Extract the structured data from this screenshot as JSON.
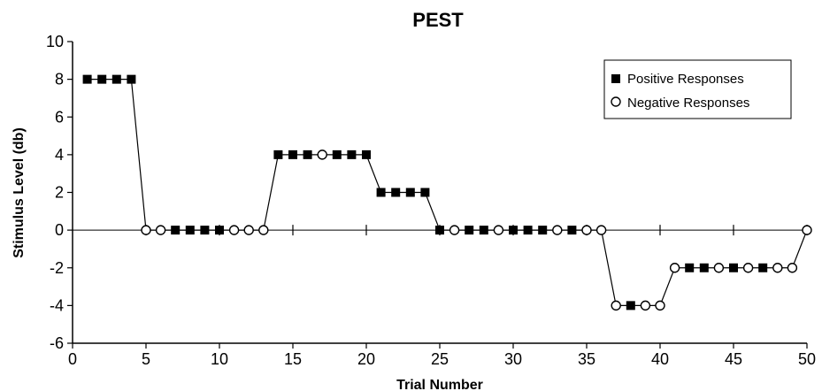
{
  "chart_data": {
    "type": "scatter",
    "title": "PEST",
    "xlabel": "Trial Number",
    "ylabel": "Stimulus Level (db)",
    "xlim": [
      0,
      50
    ],
    "ylim": [
      -6,
      10
    ],
    "xticks": [
      "0",
      "5",
      "10",
      "15",
      "20",
      "25",
      "30",
      "35",
      "40",
      "45",
      "50"
    ],
    "yticks": [
      "-6",
      "-4",
      "-2",
      "0",
      "2",
      "4",
      "6",
      "8",
      "10"
    ],
    "grid": false,
    "legend_position": "top-right",
    "line_connects_all_points": true,
    "series": [
      {
        "name": "Positive Responses",
        "marker": "filled-square",
        "points": [
          [
            1,
            8
          ],
          [
            2,
            8
          ],
          [
            3,
            8
          ],
          [
            4,
            8
          ],
          [
            7,
            0
          ],
          [
            8,
            0
          ],
          [
            9,
            0
          ],
          [
            10,
            0
          ],
          [
            14,
            4
          ],
          [
            15,
            4
          ],
          [
            16,
            4
          ],
          [
            18,
            4
          ],
          [
            19,
            4
          ],
          [
            20,
            4
          ],
          [
            21,
            2
          ],
          [
            22,
            2
          ],
          [
            23,
            2
          ],
          [
            24,
            2
          ],
          [
            25,
            0
          ],
          [
            27,
            0
          ],
          [
            28,
            0
          ],
          [
            30,
            0
          ],
          [
            31,
            0
          ],
          [
            32,
            0
          ],
          [
            34,
            0
          ],
          [
            38,
            -4
          ],
          [
            42,
            -2
          ],
          [
            43,
            -2
          ],
          [
            45,
            -2
          ],
          [
            47,
            -2
          ]
        ]
      },
      {
        "name": "Negative Responses",
        "marker": "open-circle",
        "points": [
          [
            5,
            0
          ],
          [
            6,
            0
          ],
          [
            11,
            0
          ],
          [
            12,
            0
          ],
          [
            13,
            0
          ],
          [
            17,
            4
          ],
          [
            26,
            0
          ],
          [
            29,
            0
          ],
          [
            33,
            0
          ],
          [
            35,
            0
          ],
          [
            36,
            0
          ],
          [
            37,
            -4
          ],
          [
            39,
            -4
          ],
          [
            40,
            -4
          ],
          [
            41,
            -2
          ],
          [
            44,
            -2
          ],
          [
            46,
            -2
          ],
          [
            48,
            -2
          ],
          [
            49,
            -2
          ],
          [
            50,
            0
          ]
        ]
      }
    ]
  }
}
